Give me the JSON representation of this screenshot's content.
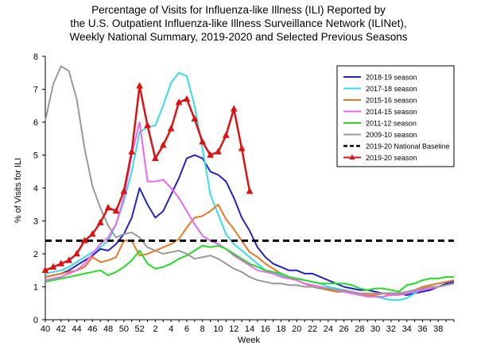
{
  "chart_data": {
    "type": "line",
    "title_lines": [
      "Percentage of Visits for Influenza-like Illness (ILI) Reported by",
      "the U.S. Outpatient Influenza-like Illness Surveillance Network (ILINet),",
      "Weekly National Summary, 2019-2020 and Selected Previous Seasons"
    ],
    "xlabel": "Week",
    "ylabel": "% of Visits for ILI",
    "ylim": [
      0,
      8
    ],
    "yticks": [
      "0",
      "1",
      "2",
      "3",
      "4",
      "5",
      "6",
      "7",
      "8"
    ],
    "x_tick_labels": [
      "40",
      "42",
      "44",
      "46",
      "48",
      "50",
      "52",
      "2",
      "4",
      "6",
      "8",
      "10",
      "12",
      "14",
      "16",
      "18",
      "20",
      "22",
      "24",
      "26",
      "28",
      "30",
      "32",
      "34",
      "36",
      "38"
    ],
    "grid": false,
    "legend_position": "top-right",
    "colors": {
      "s2018": "#2222cc",
      "s2017": "#33ddee",
      "s2015": "#ee7722",
      "s2014": "#ee66ee",
      "s2011": "#22dd22",
      "s2009": "#999999",
      "baseline": "#000000",
      "s2019": "#dd1111"
    },
    "series": [
      {
        "key": "s2018",
        "name": "2018-19 season",
        "style": "solid",
        "values": [
          1.3,
          1.35,
          1.4,
          1.5,
          1.65,
          1.8,
          1.95,
          2.15,
          2.1,
          2.3,
          2.6,
          3.1,
          4.0,
          3.5,
          3.1,
          3.3,
          3.8,
          4.3,
          4.9,
          5.0,
          4.9,
          4.5,
          4.4,
          4.2,
          3.7,
          3.1,
          2.7,
          2.2,
          1.9,
          1.7,
          1.6,
          1.5,
          1.5,
          1.4,
          1.4,
          1.3,
          1.2,
          1.1,
          1.0,
          0.95,
          0.9,
          0.9,
          0.85,
          0.8,
          0.8,
          0.8,
          0.75,
          0.8,
          0.85,
          0.9,
          1.0,
          1.1,
          1.15
        ]
      },
      {
        "key": "s2017",
        "name": "2017-18 season",
        "style": "solid",
        "values": [
          1.4,
          1.45,
          1.5,
          1.6,
          1.75,
          1.9,
          2.05,
          2.2,
          2.4,
          2.9,
          3.6,
          4.5,
          5.7,
          5.85,
          5.9,
          6.5,
          7.2,
          7.5,
          7.4,
          6.5,
          5.2,
          3.8,
          3.2,
          2.6,
          2.3,
          2.1,
          1.9,
          1.7,
          1.5,
          1.4,
          1.35,
          1.3,
          1.25,
          1.2,
          1.15,
          1.1,
          1.0,
          0.95,
          0.9,
          0.85,
          0.8,
          0.75,
          0.7,
          0.65,
          0.6,
          0.6,
          0.65,
          0.8,
          0.95,
          1.05,
          1.1,
          1.15,
          1.2
        ]
      },
      {
        "key": "s2015",
        "name": "2015-16 season",
        "style": "solid",
        "values": [
          1.3,
          1.35,
          1.4,
          1.45,
          1.5,
          1.6,
          1.9,
          1.75,
          1.8,
          1.9,
          2.4,
          2.4,
          1.95,
          2.0,
          2.1,
          2.2,
          2.3,
          2.45,
          2.8,
          3.1,
          3.15,
          3.3,
          3.5,
          3.05,
          2.75,
          2.4,
          2.05,
          1.9,
          1.7,
          1.55,
          1.4,
          1.3,
          1.2,
          1.1,
          1.0,
          0.95,
          0.9,
          0.85,
          0.85,
          0.8,
          0.8,
          0.75,
          0.75,
          0.8,
          0.75,
          0.8,
          0.85,
          0.9,
          1.0,
          1.05,
          1.1,
          1.15,
          1.2
        ]
      },
      {
        "key": "s2014",
        "name": "2014-15 season",
        "style": "solid",
        "values": [
          1.2,
          1.25,
          1.3,
          1.4,
          1.5,
          1.7,
          2.0,
          2.3,
          2.5,
          2.9,
          3.7,
          5.0,
          6.0,
          4.2,
          4.2,
          4.25,
          4.0,
          3.7,
          3.3,
          2.9,
          2.55,
          2.4,
          2.3,
          2.15,
          1.95,
          1.8,
          1.65,
          1.5,
          1.45,
          1.4,
          1.3,
          1.25,
          1.2,
          1.1,
          1.05,
          1.0,
          0.95,
          0.9,
          0.85,
          0.8,
          0.75,
          0.7,
          0.7,
          0.7,
          0.75,
          0.75,
          0.8,
          0.85,
          0.9,
          0.95,
          1.0,
          1.05,
          1.1
        ]
      },
      {
        "key": "s2011",
        "name": "2011-12 season",
        "style": "solid",
        "values": [
          1.15,
          1.2,
          1.25,
          1.3,
          1.35,
          1.4,
          1.45,
          1.5,
          1.35,
          1.45,
          1.6,
          1.8,
          2.1,
          1.7,
          1.55,
          1.6,
          1.7,
          1.85,
          1.95,
          2.1,
          2.25,
          2.2,
          2.25,
          2.15,
          2.0,
          1.85,
          1.7,
          1.6,
          1.5,
          1.45,
          1.4,
          1.3,
          1.25,
          1.2,
          1.15,
          1.1,
          1.1,
          1.1,
          1.1,
          1.05,
          0.95,
          0.9,
          0.95,
          0.95,
          0.9,
          0.85,
          1.05,
          1.1,
          1.2,
          1.25,
          1.25,
          1.3,
          1.3
        ]
      },
      {
        "key": "s2009",
        "name": "2009-10 season",
        "style": "solid",
        "values": [
          6.05,
          7.15,
          7.7,
          7.55,
          6.7,
          5.2,
          4.05,
          3.4,
          2.85,
          2.5,
          2.6,
          2.65,
          2.5,
          2.2,
          2.1,
          2.0,
          2.05,
          2.1,
          2.0,
          1.85,
          1.9,
          1.95,
          1.85,
          1.7,
          1.55,
          1.45,
          1.3,
          1.2,
          1.15,
          1.1,
          1.1,
          1.05,
          1.05,
          1.0,
          1.0,
          0.95,
          0.95,
          0.9,
          0.9,
          0.85,
          0.8,
          0.8,
          0.8,
          0.8,
          0.8,
          0.8,
          0.85,
          0.9,
          0.95,
          1.0,
          1.0,
          1.05,
          1.1
        ]
      },
      {
        "key": "baseline",
        "name": "2019-20 National Baseline",
        "style": "dashed",
        "values": [
          2.4,
          2.4,
          2.4,
          2.4,
          2.4,
          2.4,
          2.4,
          2.4,
          2.4,
          2.4,
          2.4,
          2.4,
          2.4,
          2.4,
          2.4,
          2.4,
          2.4,
          2.4,
          2.4,
          2.4,
          2.4,
          2.4,
          2.4,
          2.4,
          2.4,
          2.4,
          2.4,
          2.4,
          2.4,
          2.4,
          2.4,
          2.4,
          2.4,
          2.4,
          2.4,
          2.4,
          2.4,
          2.4,
          2.4,
          2.4,
          2.4,
          2.4,
          2.4,
          2.4,
          2.4,
          2.4,
          2.4,
          2.4,
          2.4,
          2.4,
          2.4,
          2.4,
          2.4
        ]
      },
      {
        "key": "s2019",
        "name": "2019-20 season",
        "style": "markers",
        "values": [
          1.5,
          1.6,
          1.7,
          1.8,
          2.0,
          2.4,
          2.6,
          2.95,
          3.4,
          3.3,
          3.9,
          5.1,
          7.1,
          5.9,
          4.9,
          5.3,
          5.8,
          6.6,
          6.7,
          6.1,
          5.4,
          5.0,
          5.1,
          5.6,
          6.4,
          5.2,
          3.9
        ]
      }
    ]
  }
}
